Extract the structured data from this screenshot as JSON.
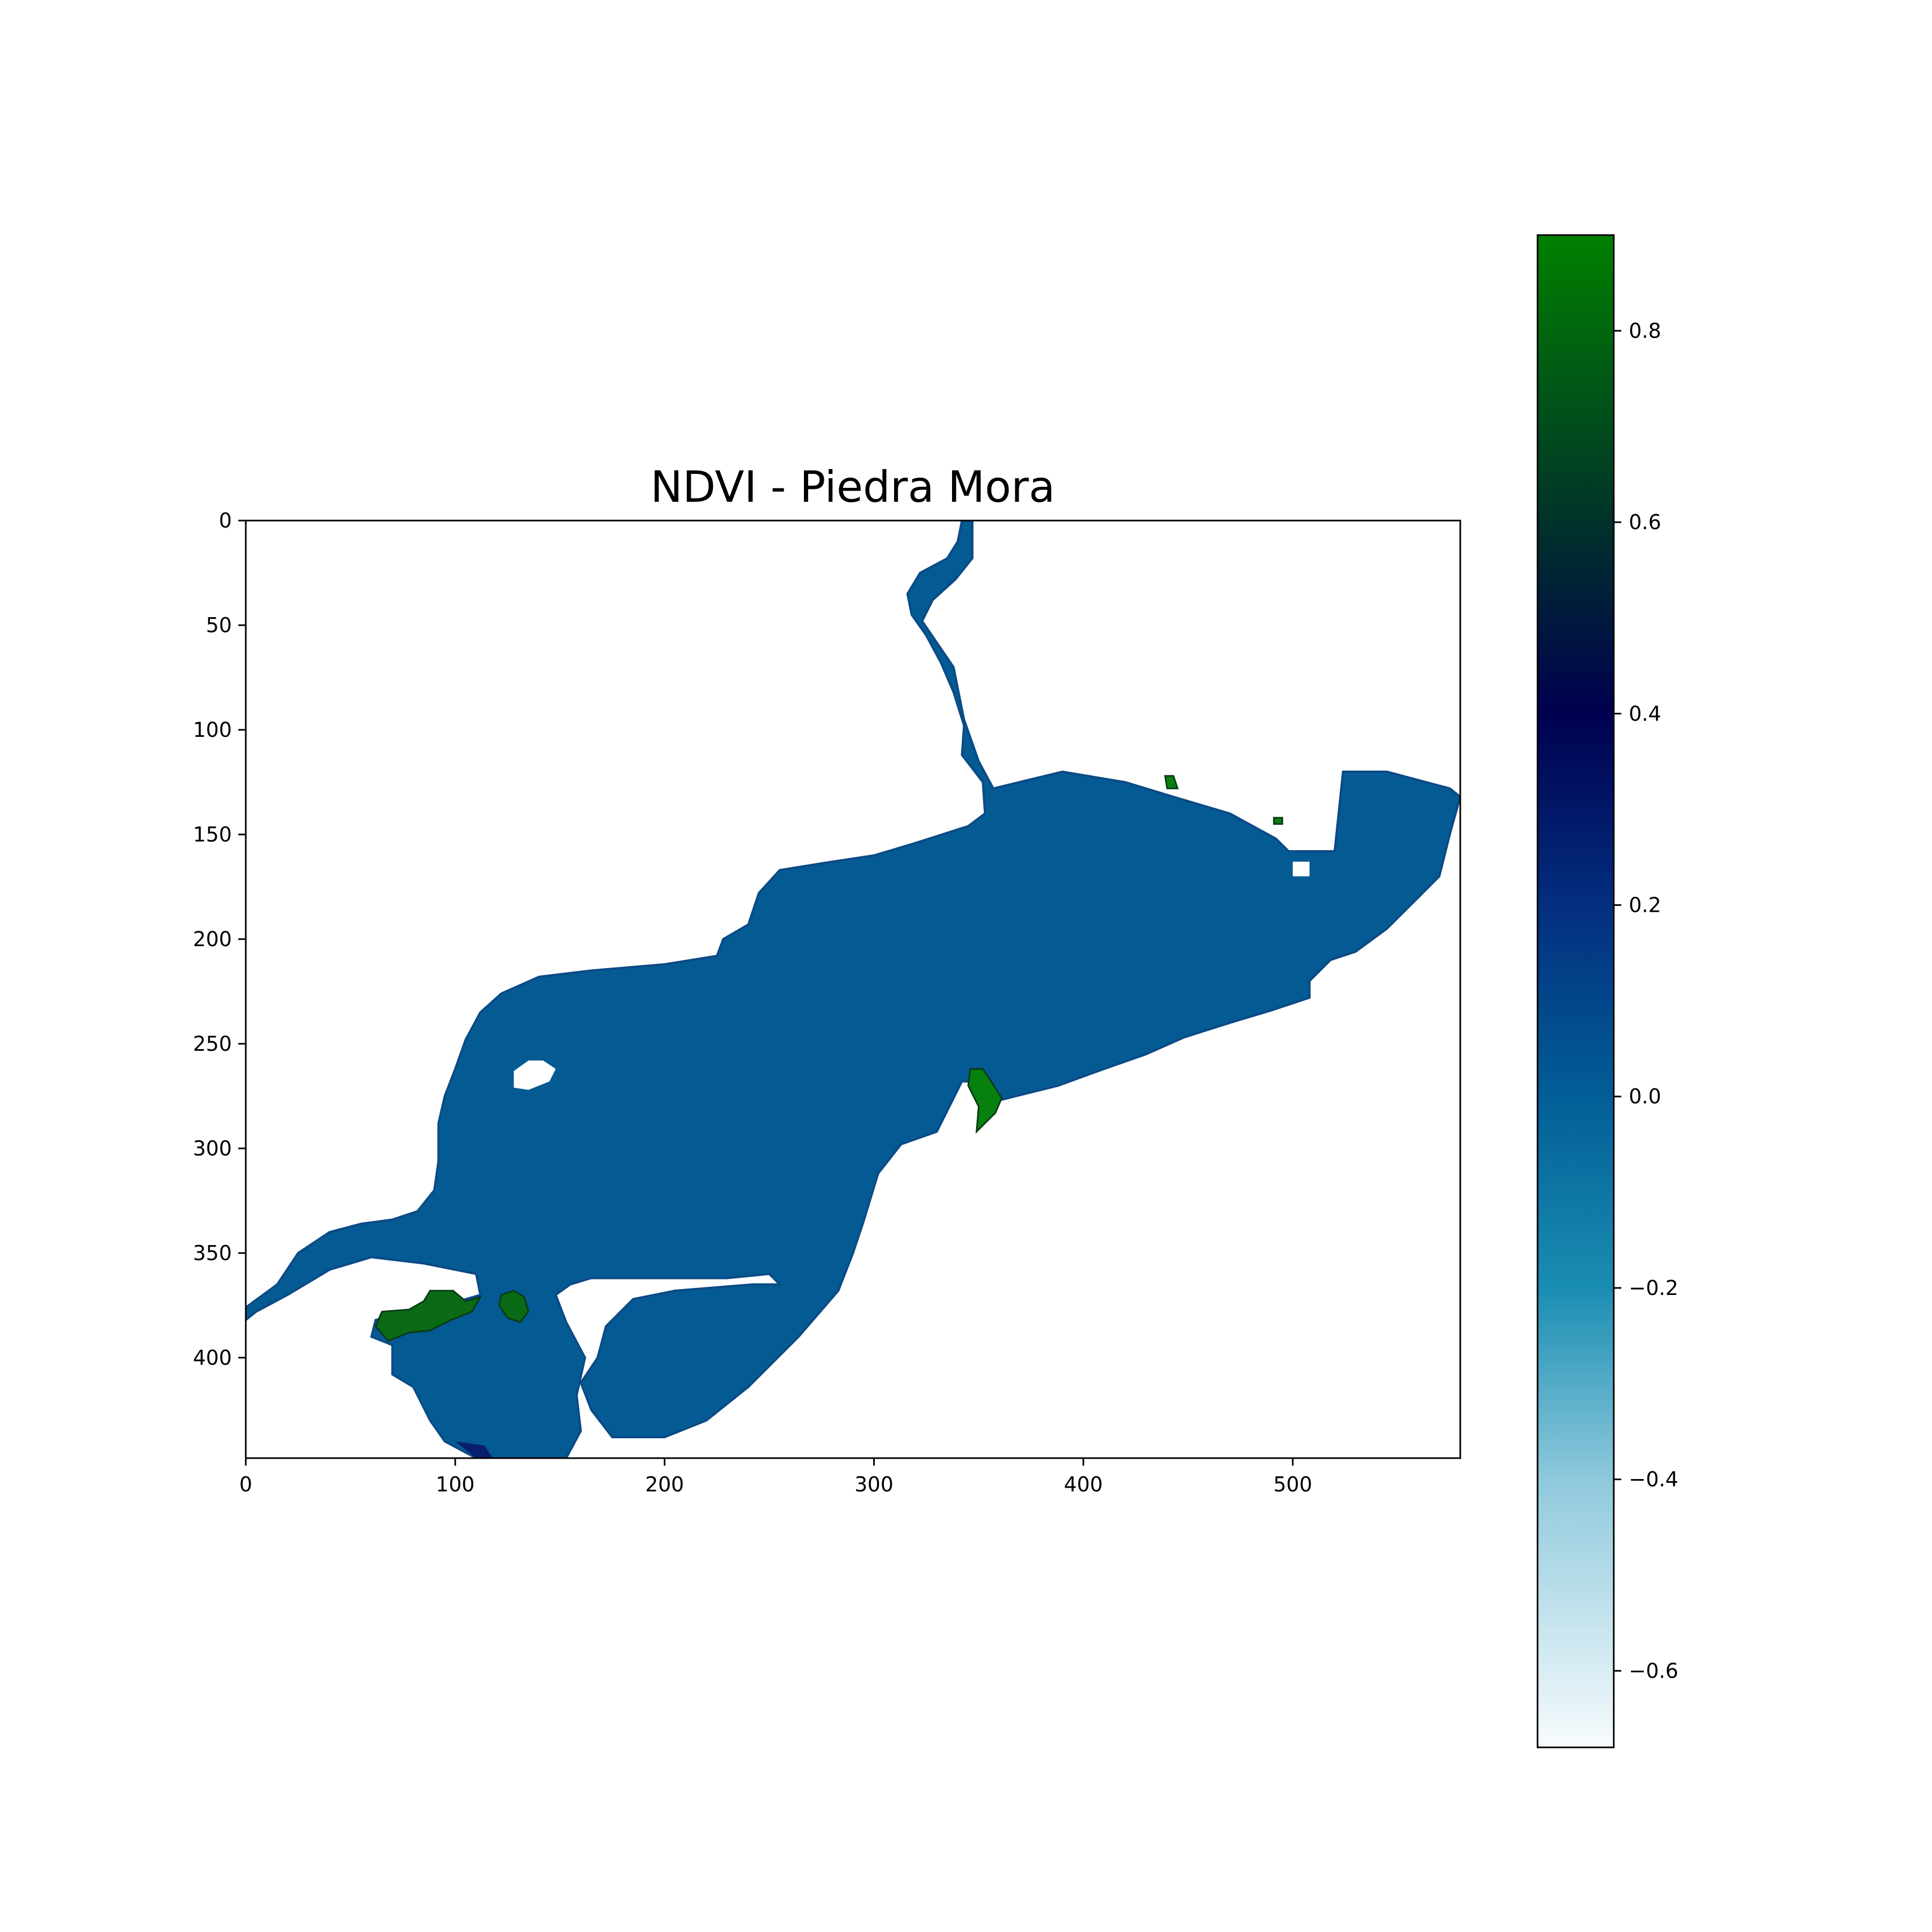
{
  "chart_data": {
    "type": "heatmap",
    "title": "NDVI - Piedra Mora",
    "xlim": [
      0,
      580
    ],
    "ylim": [
      448,
      0
    ],
    "x_ticks": [
      0,
      100,
      200,
      300,
      400,
      500
    ],
    "y_ticks": [
      0,
      50,
      100,
      150,
      200,
      250,
      300,
      350,
      400
    ],
    "grid": false,
    "colorbar": {
      "range": [
        -0.68,
        0.9
      ],
      "ticks": [
        -0.6,
        -0.4,
        -0.2,
        0.0,
        0.2,
        0.4,
        0.6,
        0.8
      ],
      "tick_labels": [
        "−0.6",
        "−0.4",
        "−0.2",
        "0.0",
        "0.2",
        "0.4",
        "0.6",
        "0.8"
      ],
      "colormap_stops": [
        {
          "value": -0.68,
          "color": "#f7fbfd"
        },
        {
          "value": -0.4,
          "color": "#8ec9dc"
        },
        {
          "value": -0.2,
          "color": "#1a8db2"
        },
        {
          "value": 0.0,
          "color": "#025e97"
        },
        {
          "value": 0.2,
          "color": "#032e7e"
        },
        {
          "value": 0.4,
          "color": "#000050"
        },
        {
          "value": 0.6,
          "color": "#00322a"
        },
        {
          "value": 0.9,
          "color": "#008000"
        }
      ]
    },
    "regions": [
      {
        "name": "water",
        "value": -0.01,
        "color": "#045a92",
        "polygon": [
          [
            342,
            0
          ],
          [
            347,
            0
          ],
          [
            347,
            18
          ],
          [
            339,
            28
          ],
          [
            328,
            38
          ],
          [
            323,
            48
          ],
          [
            338,
            70
          ],
          [
            343,
            95
          ],
          [
            350,
            115
          ],
          [
            357,
            128
          ],
          [
            390,
            120
          ],
          [
            420,
            125
          ],
          [
            443,
            132
          ],
          [
            470,
            140
          ],
          [
            492,
            152
          ],
          [
            498,
            158
          ],
          [
            520,
            158
          ],
          [
            524,
            120
          ],
          [
            545,
            120
          ],
          [
            575,
            128
          ],
          [
            580,
            132
          ],
          [
            575,
            150
          ],
          [
            570,
            170
          ],
          [
            560,
            180
          ],
          [
            545,
            195
          ],
          [
            530,
            206
          ],
          [
            518,
            210
          ],
          [
            508,
            220
          ],
          [
            508,
            228
          ],
          [
            490,
            234
          ],
          [
            470,
            240
          ],
          [
            448,
            247
          ],
          [
            430,
            255
          ],
          [
            410,
            262
          ],
          [
            388,
            270
          ],
          [
            360,
            277
          ],
          [
            350,
            268
          ],
          [
            342,
            268
          ],
          [
            338,
            276
          ],
          [
            330,
            292
          ],
          [
            313,
            298
          ],
          [
            302,
            312
          ],
          [
            295,
            335
          ],
          [
            290,
            350
          ],
          [
            283,
            368
          ],
          [
            264,
            390
          ],
          [
            240,
            414
          ],
          [
            220,
            430
          ],
          [
            200,
            438
          ],
          [
            175,
            438
          ],
          [
            165,
            425
          ],
          [
            160,
            412
          ],
          [
            168,
            400
          ],
          [
            172,
            385
          ],
          [
            185,
            372
          ],
          [
            205,
            368
          ],
          [
            242,
            365
          ],
          [
            255,
            365
          ],
          [
            250,
            360
          ],
          [
            230,
            362
          ],
          [
            200,
            362
          ],
          [
            165,
            362
          ],
          [
            155,
            365
          ],
          [
            148,
            370
          ],
          [
            153,
            383
          ],
          [
            162,
            400
          ],
          [
            158,
            418
          ],
          [
            160,
            435
          ],
          [
            153,
            448
          ],
          [
            110,
            448
          ],
          [
            95,
            440
          ],
          [
            88,
            430
          ],
          [
            80,
            414
          ],
          [
            70,
            408
          ],
          [
            70,
            394
          ],
          [
            60,
            390
          ],
          [
            62,
            382
          ],
          [
            80,
            378
          ],
          [
            95,
            375
          ],
          [
            112,
            370
          ],
          [
            110,
            360
          ],
          [
            85,
            355
          ],
          [
            60,
            352
          ],
          [
            40,
            358
          ],
          [
            20,
            370
          ],
          [
            5,
            378
          ],
          [
            0,
            382
          ],
          [
            0,
            376
          ],
          [
            15,
            365
          ],
          [
            25,
            350
          ],
          [
            40,
            340
          ],
          [
            55,
            336
          ],
          [
            70,
            334
          ],
          [
            82,
            330
          ],
          [
            90,
            320
          ],
          [
            92,
            306
          ],
          [
            92,
            288
          ],
          [
            95,
            275
          ],
          [
            100,
            262
          ],
          [
            105,
            248
          ],
          [
            112,
            235
          ],
          [
            122,
            226
          ],
          [
            140,
            218
          ],
          [
            165,
            215
          ],
          [
            200,
            212
          ],
          [
            225,
            208
          ],
          [
            228,
            200
          ],
          [
            240,
            193
          ],
          [
            245,
            178
          ],
          [
            255,
            167
          ],
          [
            280,
            163
          ],
          [
            300,
            160
          ],
          [
            320,
            154
          ],
          [
            345,
            146
          ],
          [
            353,
            140
          ],
          [
            352,
            125
          ],
          [
            342,
            112
          ],
          [
            343,
            98
          ],
          [
            338,
            82
          ],
          [
            332,
            68
          ],
          [
            325,
            55
          ],
          [
            318,
            45
          ],
          [
            316,
            35
          ],
          [
            322,
            25
          ],
          [
            335,
            18
          ],
          [
            340,
            10
          ]
        ]
      },
      {
        "name": "vegetation",
        "value": 0.88,
        "color": "#0a6b14",
        "polygon": [
          [
            62,
            385
          ],
          [
            65,
            378
          ],
          [
            78,
            377
          ],
          [
            85,
            373
          ],
          [
            88,
            368
          ],
          [
            99,
            368
          ],
          [
            105,
            373
          ],
          [
            112,
            371
          ],
          [
            108,
            378
          ],
          [
            98,
            382
          ],
          [
            88,
            387
          ],
          [
            78,
            388
          ],
          [
            68,
            392
          ]
        ]
      },
      {
        "name": "vegetation",
        "value": 0.88,
        "color": "#0a6b14",
        "polygon": [
          [
            122,
            370
          ],
          [
            128,
            368
          ],
          [
            133,
            371
          ],
          [
            135,
            378
          ],
          [
            131,
            383
          ],
          [
            125,
            381
          ],
          [
            121,
            375
          ]
        ]
      },
      {
        "name": "vegetation",
        "value": 0.9,
        "color": "#078010",
        "polygon": [
          [
            346,
            262
          ],
          [
            352,
            262
          ],
          [
            356,
            268
          ],
          [
            361,
            276
          ],
          [
            358,
            283
          ],
          [
            352,
            289
          ],
          [
            349,
            292
          ],
          [
            350,
            280
          ],
          [
            345,
            270
          ]
        ]
      },
      {
        "name": "vegetation",
        "value": 0.9,
        "color": "#078010",
        "polygon": [
          [
            439,
            122
          ],
          [
            443,
            122
          ],
          [
            445,
            128
          ],
          [
            440,
            128
          ]
        ]
      },
      {
        "name": "vegetation",
        "value": 0.9,
        "color": "#078010",
        "polygon": [
          [
            491,
            142
          ],
          [
            495,
            142
          ],
          [
            495,
            145
          ],
          [
            491,
            145
          ]
        ]
      },
      {
        "name": "no-data",
        "value": null,
        "color": "#ffffff",
        "polygon": [
          [
            128,
            263
          ],
          [
            135,
            258
          ],
          [
            142,
            258
          ],
          [
            148,
            262
          ],
          [
            145,
            268
          ],
          [
            135,
            272
          ],
          [
            128,
            271
          ]
        ]
      },
      {
        "name": "no-data",
        "value": null,
        "color": "#ffffff",
        "polygon": [
          [
            500,
            163
          ],
          [
            508,
            163
          ],
          [
            508,
            170
          ],
          [
            500,
            170
          ]
        ]
      },
      {
        "name": "dark-shore",
        "value": 0.3,
        "color": "#0a1e6e",
        "polygon": [
          [
            100,
            440
          ],
          [
            110,
            448
          ],
          [
            118,
            448
          ],
          [
            114,
            442
          ]
        ]
      }
    ]
  }
}
